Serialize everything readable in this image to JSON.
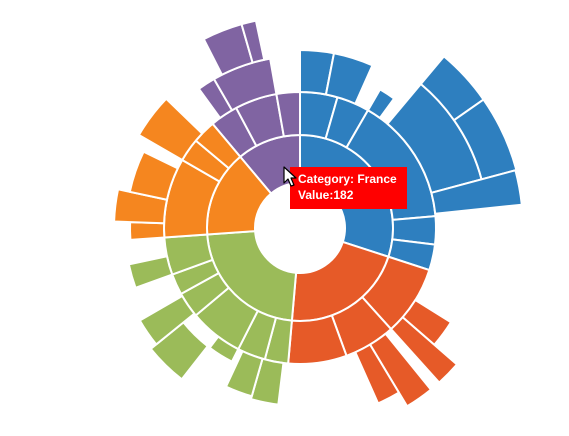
{
  "chart_data": {
    "type": "sunburst",
    "colors": {
      "purple": "#8064a2",
      "blue": "#2e7fbf",
      "red": "#e65a28",
      "green": "#9bbb59",
      "orange": "#f5861f"
    },
    "segments": [
      {
        "color": "purple",
        "ring": 1,
        "r0": 45,
        "r1": 93,
        "a0": -40,
        "a1": 0
      },
      {
        "color": "blue",
        "ring": 1,
        "r0": 45,
        "r1": 93,
        "a0": 0,
        "a1": 108
      },
      {
        "color": "red",
        "ring": 1,
        "r0": 45,
        "r1": 93,
        "a0": 108,
        "a1": 185
      },
      {
        "color": "green",
        "ring": 1,
        "r0": 45,
        "r1": 93,
        "a0": 185,
        "a1": 266
      },
      {
        "color": "orange",
        "ring": 1,
        "r0": 45,
        "r1": 93,
        "a0": 266,
        "a1": 320
      },
      {
        "color": "purple",
        "ring": 2,
        "r0": 93,
        "r1": 136,
        "a0": -40,
        "a1": -28
      },
      {
        "color": "purple",
        "ring": 2,
        "r0": 93,
        "r1": 136,
        "a0": -28,
        "a1": -10
      },
      {
        "color": "purple",
        "ring": 2,
        "r0": 93,
        "r1": 136,
        "a0": -10,
        "a1": 0
      },
      {
        "color": "blue",
        "ring": 2,
        "r0": 93,
        "r1": 136,
        "a0": 0,
        "a1": 16
      },
      {
        "color": "blue",
        "ring": 2,
        "r0": 93,
        "r1": 136,
        "a0": 16,
        "a1": 30
      },
      {
        "color": "blue",
        "ring": 2,
        "r0": 93,
        "r1": 136,
        "a0": 30,
        "a1": 85
      },
      {
        "color": "blue",
        "ring": 2,
        "r0": 93,
        "r1": 136,
        "a0": 85,
        "a1": 97
      },
      {
        "color": "blue",
        "ring": 2,
        "r0": 93,
        "r1": 136,
        "a0": 97,
        "a1": 108
      },
      {
        "color": "red",
        "ring": 2,
        "r0": 93,
        "r1": 136,
        "a0": 108,
        "a1": 138
      },
      {
        "color": "red",
        "ring": 2,
        "r0": 93,
        "r1": 136,
        "a0": 138,
        "a1": 160
      },
      {
        "color": "red",
        "ring": 2,
        "r0": 93,
        "r1": 136,
        "a0": 160,
        "a1": 185
      },
      {
        "color": "green",
        "ring": 2,
        "r0": 93,
        "r1": 136,
        "a0": 185,
        "a1": 195
      },
      {
        "color": "green",
        "ring": 2,
        "r0": 93,
        "r1": 136,
        "a0": 195,
        "a1": 207
      },
      {
        "color": "green",
        "ring": 2,
        "r0": 93,
        "r1": 136,
        "a0": 207,
        "a1": 230
      },
      {
        "color": "green",
        "ring": 2,
        "r0": 93,
        "r1": 136,
        "a0": 230,
        "a1": 241
      },
      {
        "color": "green",
        "ring": 2,
        "r0": 93,
        "r1": 136,
        "a0": 241,
        "a1": 250
      },
      {
        "color": "green",
        "ring": 2,
        "r0": 93,
        "r1": 136,
        "a0": 250,
        "a1": 266
      },
      {
        "color": "orange",
        "ring": 2,
        "r0": 93,
        "r1": 136,
        "a0": 266,
        "a1": 300
      },
      {
        "color": "orange",
        "ring": 2,
        "r0": 93,
        "r1": 136,
        "a0": 300,
        "a1": 310
      },
      {
        "color": "orange",
        "ring": 2,
        "r0": 93,
        "r1": 136,
        "a0": 310,
        "a1": 320
      },
      {
        "color": "purple",
        "ring": 3,
        "r0": 136,
        "r1": 172,
        "a0": -36,
        "a1": -30
      },
      {
        "color": "purple",
        "ring": 3,
        "r0": 136,
        "r1": 172,
        "a0": -30,
        "a1": -10
      },
      {
        "color": "purple",
        "ring": 3,
        "r0": 172,
        "r1": 212,
        "a0": -27,
        "a1": -16
      },
      {
        "color": "purple",
        "ring": 3,
        "r0": 172,
        "r1": 212,
        "a0": -16,
        "a1": -12
      },
      {
        "color": "blue",
        "ring": 3,
        "r0": 136,
        "r1": 178,
        "a0": 0,
        "a1": 11
      },
      {
        "color": "blue",
        "ring": 3,
        "r0": 136,
        "r1": 178,
        "a0": 11,
        "a1": 24
      },
      {
        "color": "blue",
        "ring": 3,
        "r0": 136,
        "r1": 160,
        "a0": 30,
        "a1": 36
      },
      {
        "color": "blue",
        "ring": 3,
        "r0": 136,
        "r1": 188,
        "a0": 40,
        "a1": 75
      },
      {
        "color": "blue",
        "ring": 3,
        "r0": 188,
        "r1": 224,
        "a0": 40,
        "a1": 55
      },
      {
        "color": "blue",
        "ring": 3,
        "r0": 188,
        "r1": 224,
        "a0": 55,
        "a1": 75
      },
      {
        "color": "blue",
        "ring": 3,
        "r0": 136,
        "r1": 223,
        "a0": 75,
        "a1": 84
      },
      {
        "color": "red",
        "ring": 3,
        "r0": 136,
        "r1": 178,
        "a0": 122,
        "a1": 131
      },
      {
        "color": "red",
        "ring": 3,
        "r0": 136,
        "r1": 208,
        "a0": 131,
        "a1": 138
      },
      {
        "color": "red",
        "ring": 3,
        "r0": 136,
        "r1": 208,
        "a0": 141,
        "a1": 149
      },
      {
        "color": "red",
        "ring": 3,
        "r0": 136,
        "r1": 192,
        "a0": 149,
        "a1": 156
      },
      {
        "color": "green",
        "ring": 3,
        "r0": 136,
        "r1": 178,
        "a0": 187,
        "a1": 196
      },
      {
        "color": "green",
        "ring": 3,
        "r0": 136,
        "r1": 175,
        "a0": 196,
        "a1": 205
      },
      {
        "color": "green",
        "ring": 3,
        "r0": 136,
        "r1": 150,
        "a0": 207,
        "a1": 217
      },
      {
        "color": "green",
        "ring": 3,
        "r0": 150,
        "r1": 192,
        "a0": 218,
        "a1": 231
      },
      {
        "color": "green",
        "ring": 3,
        "r0": 136,
        "r1": 185,
        "a0": 231,
        "a1": 240
      },
      {
        "color": "green",
        "ring": 3,
        "r0": 136,
        "r1": 175,
        "a0": 250,
        "a1": 258
      },
      {
        "color": "orange",
        "ring": 3,
        "r0": 136,
        "r1": 170,
        "a0": 266,
        "a1": 272
      },
      {
        "color": "orange",
        "ring": 3,
        "r0": 136,
        "r1": 186,
        "a0": 272,
        "a1": 282
      },
      {
        "color": "orange",
        "ring": 3,
        "r0": 136,
        "r1": 174,
        "a0": 282,
        "a1": 296
      },
      {
        "color": "orange",
        "ring": 3,
        "r0": 136,
        "r1": 186,
        "a0": 300,
        "a1": 314
      }
    ],
    "tooltip": {
      "category_line": "Category: France",
      "value_line": "Value:182"
    }
  }
}
